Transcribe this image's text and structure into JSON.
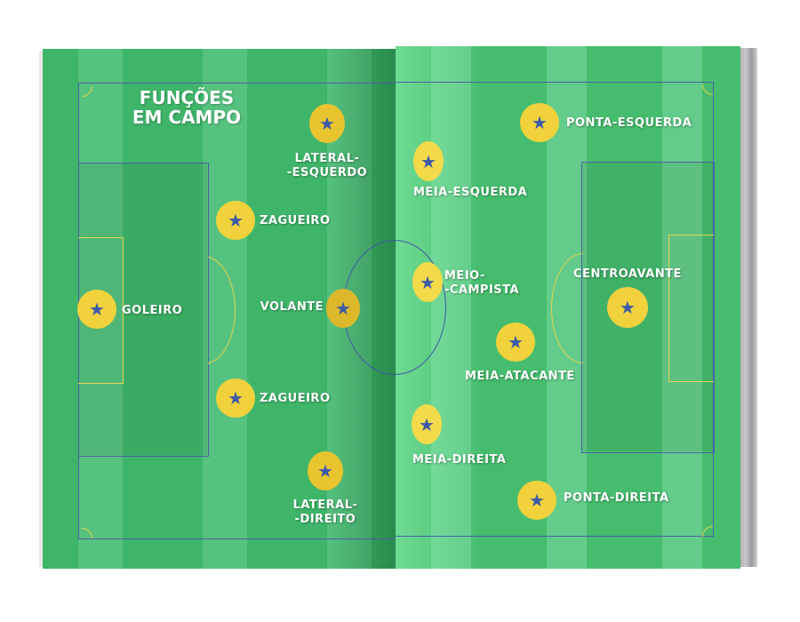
{
  "title": [
    "FUNÇÕES",
    "EM CAMPO"
  ],
  "colors": {
    "field": "#3fb56a",
    "marker": "#f1d23c",
    "star": "#3c5aa8",
    "lines": "#4a5fa8"
  },
  "marker_icon": "star-icon",
  "star": "★",
  "positions": {
    "goleiro": "GOLEIRO",
    "zagueiro_top": "ZAGUEIRO",
    "zagueiro_bottom": "ZAGUEIRO",
    "lateral_esquerdo": [
      "LATERAL-",
      "-ESQUERDO"
    ],
    "lateral_direito": [
      "LATERAL-",
      "-DIREITO"
    ],
    "volante": "VOLANTE",
    "ponta_esquerda": "PONTA-ESQUERDA",
    "meia_esquerda": "MEIA-ESQUERDA",
    "meio_campista": [
      "MEIO-",
      "-CAMPISTA"
    ],
    "meia_atacante": "MEIA-ATACANTE",
    "meia_direita": "MEIA-DIREITA",
    "ponta_direita": "PONTA-DIREITA",
    "centroavante": "CENTROAVANTE"
  }
}
